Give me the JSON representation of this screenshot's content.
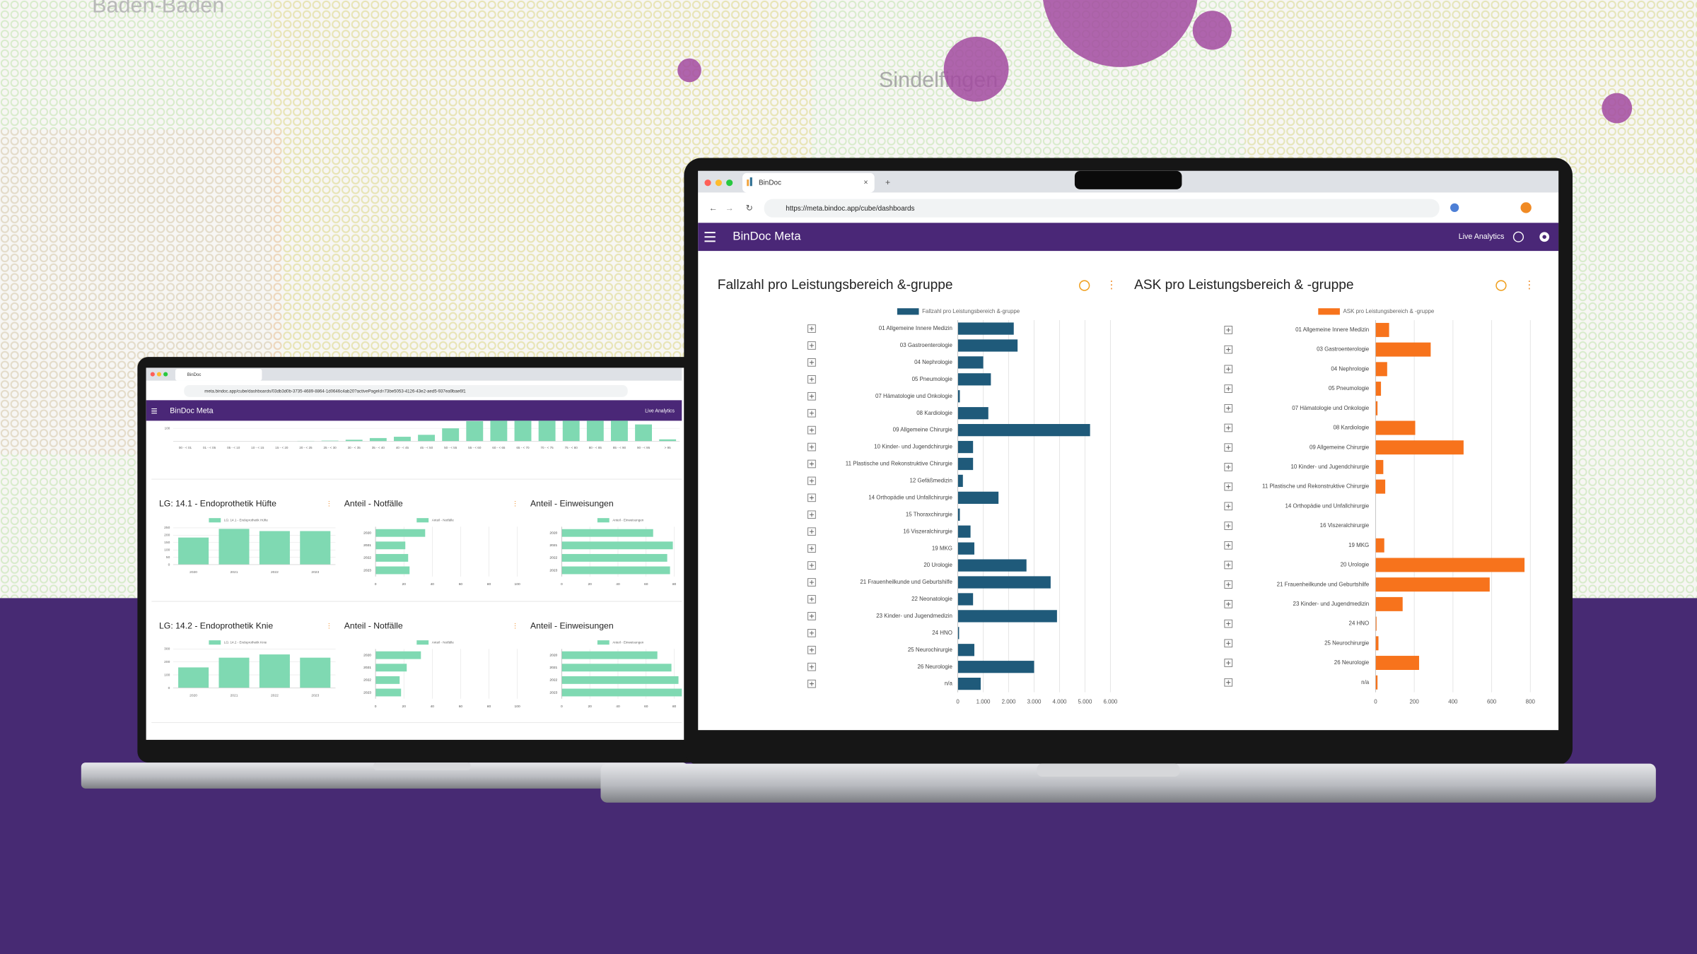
{
  "map": {
    "labels": [
      "Baden-Baden",
      "Sindelfingen"
    ]
  },
  "small_laptop": {
    "tab": "BinDoc",
    "url": "meta.bindoc.app/cube/dashboards/03db3d0b-3735-4689-8864-1d0646c4ab20?activePageId=73be5053-4126-43e2-aed5-937ea9bae6f1",
    "app_title": "BinDoc Meta",
    "live": "Live Analytics"
  },
  "large_laptop": {
    "tab": "BinDoc",
    "url": "https://meta.bindoc.app/cube/dashboards",
    "app_title": "BinDoc Meta",
    "live": "Live Analytics"
  },
  "chart_data": [
    {
      "type": "bar",
      "categories": [
        "00 - < 01",
        "01 - < 05",
        "05 - < 10",
        "10 - < 15",
        "15 - < 20",
        "20 - < 25",
        "25 - < 30",
        "30 - < 35",
        "35 - < 40",
        "40 - < 45",
        "45 - < 50",
        "50 - < 55",
        "55 - < 60",
        "60 - < 65",
        "65 - < 70",
        "70 - < 75",
        "75 - < 80",
        "80 - < 85",
        "85 - < 90",
        "90 - < 95",
        "> 95"
      ],
      "values": [
        0,
        0,
        0,
        0,
        1,
        3,
        5,
        12,
        25,
        35,
        50,
        100,
        155,
        250,
        290,
        300,
        295,
        280,
        240,
        130,
        15
      ],
      "color": "#7fd9b2",
      "ylim": [
        0,
        300
      ],
      "yticks": [
        100
      ],
      "grid": true
    },
    {
      "type": "bar",
      "title": "LG: 14.1 - Endoprothetik Hüfte",
      "categories": [
        "2020",
        "2021",
        "2022",
        "2023"
      ],
      "series": [
        {
          "name": "LG: 14.1 - Endoprothetik Hüfte",
          "color": "#7fd9b2",
          "values": [
            184,
            243,
            228,
            228
          ]
        }
      ],
      "ylim": [
        0,
        250
      ],
      "yticks": [
        0,
        50,
        100,
        150,
        200,
        250
      ],
      "grid": true
    },
    {
      "type": "hbar",
      "title": "Anteil - Notfälle",
      "categories": [
        "2020",
        "2021",
        "2022",
        "2023"
      ],
      "series": [
        {
          "name": "Anteil - Notfälle",
          "color": "#7fd9b2",
          "values": [
            35,
            21,
            23,
            24
          ]
        }
      ],
      "xlim": [
        0,
        100
      ],
      "xticks": [
        0,
        20,
        40,
        60,
        80,
        100
      ],
      "grid": true
    },
    {
      "type": "hbar",
      "title": "Anteil - Einweisungen",
      "categories": [
        "2020",
        "2021",
        "2022",
        "2023"
      ],
      "series": [
        {
          "name": "Anteil - Einweisungen",
          "color": "#7fd9b2",
          "values": [
            65,
            79,
            75,
            77
          ]
        }
      ],
      "xlim": [
        0,
        100
      ],
      "xticks": [
        0,
        20,
        40,
        60,
        80,
        100
      ],
      "grid": true
    },
    {
      "type": "bar",
      "title": "LG: 14.2 - Endoprothetik Knie",
      "categories": [
        "2020",
        "2021",
        "2022",
        "2023"
      ],
      "series": [
        {
          "name": "LG: 14.2 - Endoprothetik Knie",
          "color": "#7fd9b2",
          "values": [
            158,
            233,
            258,
            233
          ]
        }
      ],
      "ylim": [
        0,
        300
      ],
      "yticks": [
        0,
        100,
        200,
        300
      ],
      "grid": true
    },
    {
      "type": "hbar",
      "title": "Anteil - Notfälle",
      "categories": [
        "2020",
        "2021",
        "2022",
        "2023"
      ],
      "series": [
        {
          "name": "Anteil - Notfälle",
          "color": "#7fd9b2",
          "values": [
            32,
            22,
            17,
            18
          ]
        }
      ],
      "xlim": [
        0,
        100
      ],
      "xticks": [
        0,
        20,
        40,
        60,
        80,
        100
      ],
      "grid": true
    },
    {
      "type": "hbar",
      "title": "Anteil - Einweisungen",
      "categories": [
        "2020",
        "2021",
        "2022",
        "2023"
      ],
      "series": [
        {
          "name": "Anteil - Einweisungen",
          "color": "#7fd9b2",
          "values": [
            68,
            78,
            83,
            90
          ]
        }
      ],
      "xlim": [
        0,
        100
      ],
      "xticks": [
        0,
        20,
        40,
        60,
        80,
        100
      ],
      "grid": true
    },
    {
      "type": "hbar",
      "title": "Fallzahl pro Leistungsbereich &-gruppe",
      "categories": [
        "01 Allgemeine Innere Medizin",
        "03 Gastroenterologie",
        "04 Nephrologie",
        "05 Pneumologie",
        "07 Hämatologie und Onkologie",
        "08 Kardiologie",
        "09 Allgemeine Chirurgie",
        "10 Kinder- und Jugendchirurgie",
        "11 Plastische und Rekonstruktive Chirurgie",
        "12 Gefäßmedizin",
        "14 Orthopädie und Unfallchirurgie",
        "15 Thoraxchirurgie",
        "16 Viszeralchirurgie",
        "19 MKG",
        "20 Urologie",
        "21 Frauenheilkunde und Geburtshilfe",
        "22 Neonatologie",
        "23 Kinder- und Jugendmedizin",
        "24 HNO",
        "25 Neurochirurgie",
        "26 Neurologie",
        "n/a"
      ],
      "series": [
        {
          "name": "Fallzahl pro Leistungsbereich &-gruppe",
          "color": "#1f5a7a",
          "values": [
            2200,
            2350,
            1000,
            1300,
            80,
            1200,
            5200,
            600,
            600,
            200,
            1600,
            80,
            500,
            650,
            2700,
            3650,
            600,
            3900,
            50,
            650,
            3000,
            900
          ]
        }
      ],
      "xlim": [
        0,
        6000
      ],
      "xticks": [
        0,
        {
          "value": 1000,
          "label": "1.000"
        },
        {
          "value": 2000,
          "label": "2.000"
        },
        {
          "value": 3000,
          "label": "3.000"
        },
        {
          "value": 4000,
          "label": "4.000"
        },
        {
          "value": 5000,
          "label": "5.000"
        },
        {
          "value": 6000,
          "label": "6.000"
        }
      ],
      "grid": true
    },
    {
      "type": "hbar",
      "title": "ASK pro Leistungsbereich & -gruppe",
      "categories": [
        "01 Allgemeine Innere Medizin",
        "03 Gastroenterologie",
        "04 Nephrologie",
        "05 Pneumologie",
        "07 Hämatologie und Onkologie",
        "08 Kardiologie",
        "09 Allgemeine Chirurgie",
        "10 Kinder- und Jugendchirurgie",
        "11 Plastische und Rekonstruktive Chirurgie",
        "14 Orthopädie und Unfallchirurgie",
        "16 Viszeralchirurgie",
        "19 MKG",
        "20 Urologie",
        "21 Frauenheilkunde und Geburtshilfe",
        "23 Kinder- und Jugendmedizin",
        "24 HNO",
        "25 Neurochirurgie",
        "26 Neurologie",
        "n/a"
      ],
      "series": [
        {
          "name": "ASK pro Leistungsbereich & -gruppe",
          "color": "#f7731c",
          "values": [
            70,
            285,
            60,
            28,
            10,
            205,
            455,
            40,
            50,
            0,
            0,
            45,
            770,
            590,
            140,
            5,
            15,
            225,
            10
          ]
        }
      ],
      "xlim": [
        0,
        800
      ],
      "xticks": [
        0,
        200,
        400,
        600,
        800
      ],
      "grid": true
    }
  ]
}
